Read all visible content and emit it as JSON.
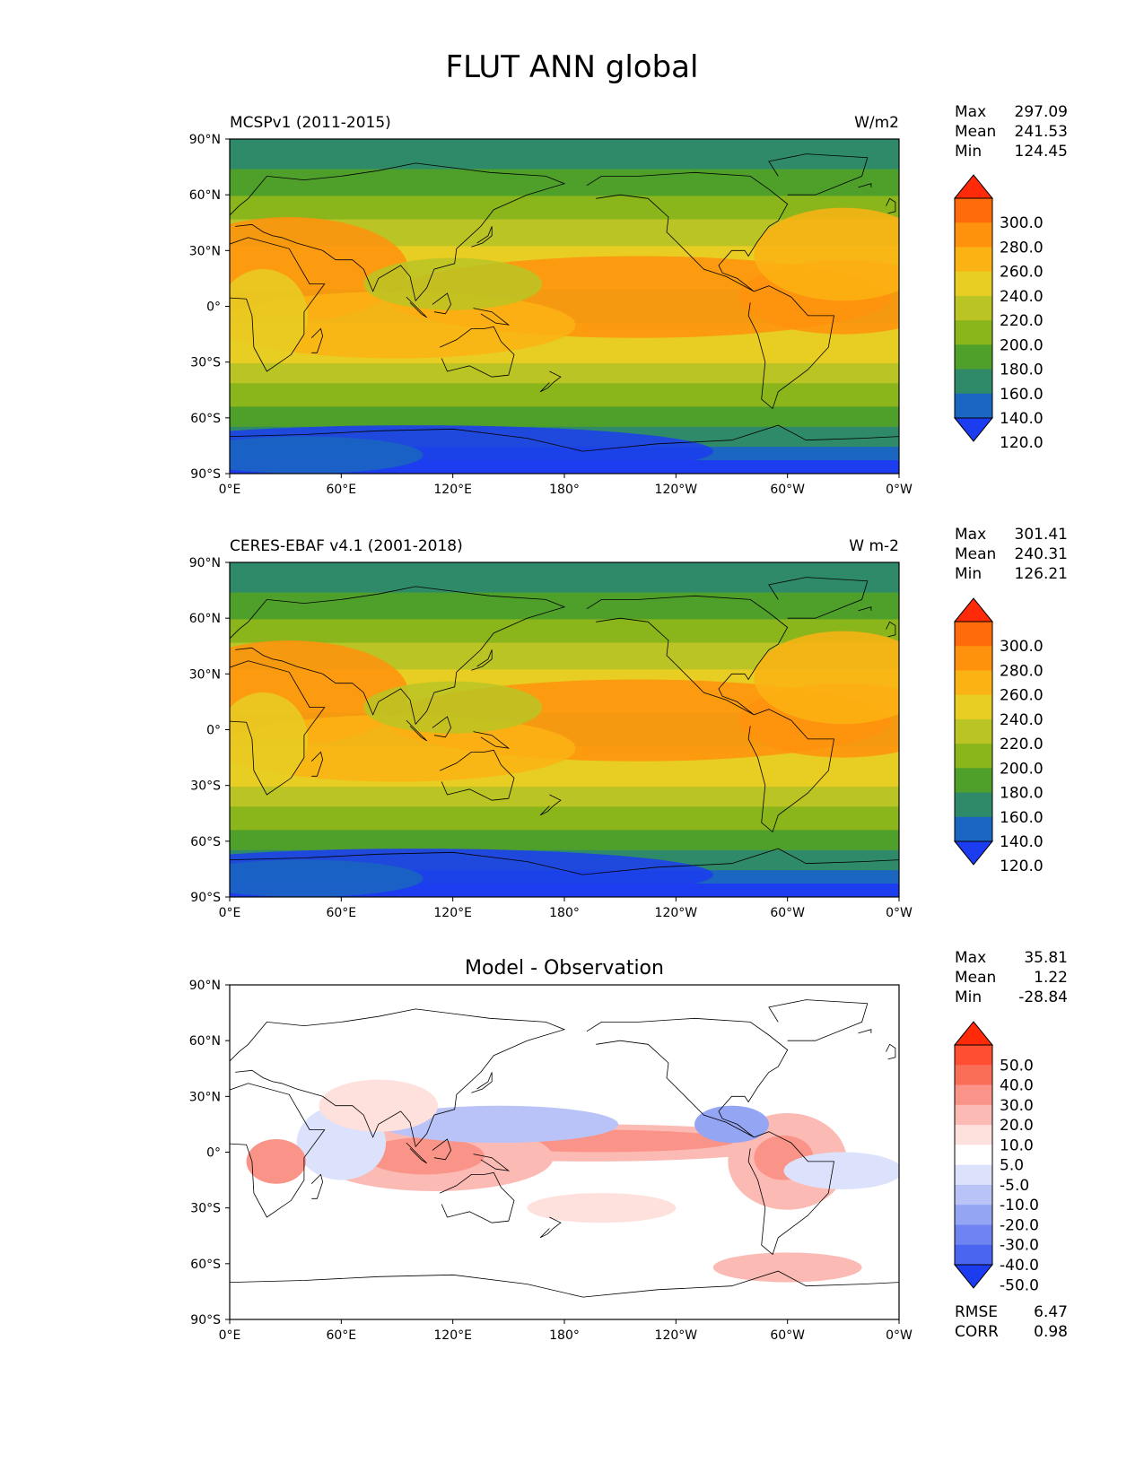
{
  "figure": {
    "title": "FLUT ANN global"
  },
  "axes": {
    "lat_ticks": [
      "90°N",
      "60°N",
      "30°N",
      "0°",
      "30°S",
      "60°S",
      "90°S"
    ],
    "lon_ticks": [
      "0°E",
      "60°E",
      "120°E",
      "180°",
      "120°W",
      "60°W",
      "0°W"
    ]
  },
  "panels": [
    {
      "title_left": "MCSPv1 (2011-2015)",
      "title_right": "W/m2",
      "title_center": "",
      "stats": [
        {
          "label": "Max",
          "value": "297.09"
        },
        {
          "label": "Mean",
          "value": "241.53"
        },
        {
          "label": "Min",
          "value": "124.45"
        }
      ],
      "colorbar": {
        "labels": [
          "300.0",
          "280.0",
          "260.0",
          "240.0",
          "220.0",
          "200.0",
          "180.0",
          "160.0",
          "140.0",
          "120.0"
        ],
        "colors": [
          "#ff2a0a",
          "#ff6a0a",
          "#ff920d",
          "#fbb313",
          "#e8cd23",
          "#bac424",
          "#8ab51b",
          "#4fa02a",
          "#2f8a6a",
          "#1a66c0",
          "#1c3cf0"
        ]
      },
      "extra_stats": []
    },
    {
      "title_left": "CERES-EBAF v4.1 (2001-2018)",
      "title_right": "W m-2",
      "title_center": "",
      "stats": [
        {
          "label": "Max",
          "value": "301.41"
        },
        {
          "label": "Mean",
          "value": "240.31"
        },
        {
          "label": "Min",
          "value": "126.21"
        }
      ],
      "colorbar": {
        "labels": [
          "300.0",
          "280.0",
          "260.0",
          "240.0",
          "220.0",
          "200.0",
          "180.0",
          "160.0",
          "140.0",
          "120.0"
        ],
        "colors": [
          "#ff2a0a",
          "#ff6a0a",
          "#ff920d",
          "#fbb313",
          "#e8cd23",
          "#bac424",
          "#8ab51b",
          "#4fa02a",
          "#2f8a6a",
          "#1a66c0",
          "#1c3cf0"
        ]
      },
      "extra_stats": []
    },
    {
      "title_left": "",
      "title_right": "",
      "title_center": "Model - Observation",
      "stats": [
        {
          "label": "Max",
          "value": "35.81"
        },
        {
          "label": "Mean",
          "value": "1.22"
        },
        {
          "label": "Min",
          "value": "-28.84"
        }
      ],
      "colorbar": {
        "labels": [
          "50.0",
          "40.0",
          "30.0",
          "20.0",
          "10.0",
          "5.0",
          "-5.0",
          "-10.0",
          "-20.0",
          "-30.0",
          "-40.0",
          "-50.0"
        ],
        "colors": [
          "#ff2a0a",
          "#ff4e32",
          "#fa6e58",
          "#fa9488",
          "#fcbab4",
          "#fee0dc",
          "#ffffff",
          "#dde2fc",
          "#b9c3f7",
          "#94a5f4",
          "#6f84f0",
          "#4a65f0",
          "#1c3cf0"
        ]
      },
      "extra_stats": [
        {
          "label": "RMSE",
          "value": "6.47"
        },
        {
          "label": "CORR",
          "value": "0.98"
        }
      ]
    }
  ],
  "chart_data": [
    {
      "type": "heatmap",
      "title": "MCSPv1 (2011-2015)",
      "units": "W/m2",
      "x_range": [
        0,
        360
      ],
      "y_range": [
        -90,
        90
      ],
      "levels": [
        120,
        140,
        160,
        180,
        200,
        220,
        240,
        260,
        280,
        300
      ],
      "max": 297.09,
      "mean": 241.53,
      "min": 124.45
    },
    {
      "type": "heatmap",
      "title": "CERES-EBAF v4.1 (2001-2018)",
      "units": "W m-2",
      "x_range": [
        0,
        360
      ],
      "y_range": [
        -90,
        90
      ],
      "levels": [
        120,
        140,
        160,
        180,
        200,
        220,
        240,
        260,
        280,
        300
      ],
      "max": 301.41,
      "mean": 240.31,
      "min": 126.21
    },
    {
      "type": "heatmap",
      "title": "Model - Observation",
      "x_range": [
        0,
        360
      ],
      "y_range": [
        -90,
        90
      ],
      "levels": [
        -50,
        -40,
        -30,
        -20,
        -10,
        -5,
        5,
        10,
        20,
        30,
        40,
        50
      ],
      "max": 35.81,
      "mean": 1.22,
      "min": -28.84,
      "rmse": 6.47,
      "corr": 0.98
    }
  ]
}
